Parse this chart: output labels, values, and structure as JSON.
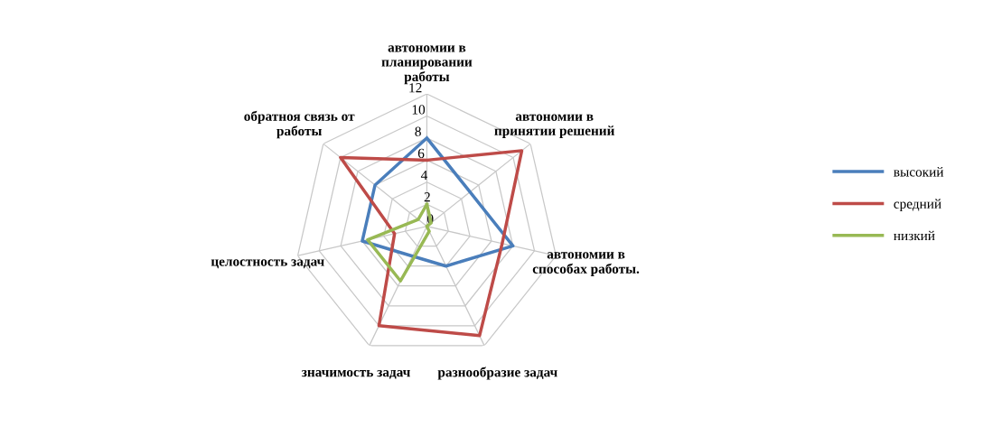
{
  "chart_data": {
    "type": "radar",
    "categories": [
      "автономии в планировании работы",
      "автономии в принятии решений",
      "автономии в способах работы.",
      "разнообразие задач",
      "значимость задач",
      "целостность задач",
      "обратноя связь от работы"
    ],
    "series": [
      {
        "name": "высокий",
        "color": "#4a7ebb",
        "values": [
          8,
          5,
          8,
          4,
          3,
          6,
          6
        ]
      },
      {
        "name": "средний",
        "color": "#be4b48",
        "values": [
          6,
          11,
          7,
          11,
          10,
          3,
          10
        ]
      },
      {
        "name": "низкий",
        "color": "#98b954",
        "values": [
          2,
          0.5,
          0,
          0.5,
          5.5,
          5.5,
          1
        ]
      }
    ],
    "ylim": [
      0,
      12
    ],
    "yticks": [
      0,
      2,
      4,
      6,
      8,
      10,
      12
    ],
    "grid": true,
    "legend": "right",
    "marker": "none"
  }
}
